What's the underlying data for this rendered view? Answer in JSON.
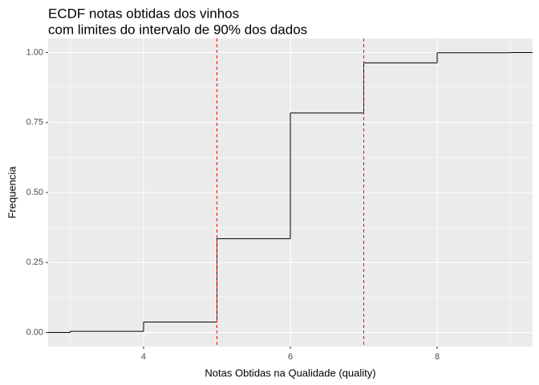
{
  "chart_data": {
    "type": "ecdf",
    "title": [
      "ECDF notas obtidas dos vinhos",
      "com limites do intervalo de 90% dos dados"
    ],
    "x_label": "Notas Obtidas na Qualidade (quality)",
    "y_label": "Frequencia",
    "x": [
      3,
      4,
      5,
      6,
      7,
      8,
      9
    ],
    "values": [
      0.0041,
      0.0374,
      0.335,
      0.784,
      0.963,
      0.999,
      1.0
    ],
    "color": "#000000",
    "vlines": [
      5,
      7
    ],
    "vline_color": "#ff0000",
    "xlim": [
      2.7,
      9.3
    ],
    "xticks": [
      4,
      6,
      8
    ],
    "ylim": [
      -0.05,
      1.05
    ],
    "yticks": [
      {
        "value": 0,
        "label": "0.00"
      },
      {
        "value": 0.25,
        "label": "0.25"
      },
      {
        "value": 0.5,
        "label": "0.50"
      },
      {
        "value": 0.75,
        "label": "0.75"
      },
      {
        "value": 1,
        "label": "1.00"
      }
    ],
    "grid": true
  }
}
